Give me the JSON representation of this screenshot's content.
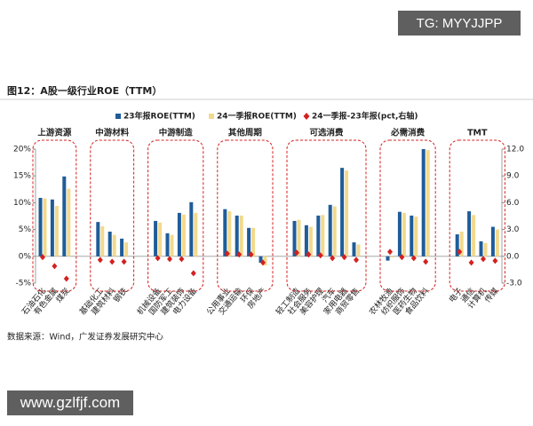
{
  "watermark_top": "TG: MYYJJPP",
  "watermark_bottom": "www.gzlfjf.com",
  "chart_data": {
    "type": "bar",
    "title": "图12：A股一级行业ROE（TTM）",
    "source": "数据来源：Wind，广发证券发展研究中心",
    "legend": "top",
    "groups": [
      {
        "name": "上游资源",
        "categories": [
          "石油石化",
          "有色金属",
          "煤炭"
        ]
      },
      {
        "name": "中游材料",
        "categories": [
          "基础化工",
          "建筑材料",
          "钢铁"
        ]
      },
      {
        "name": "中游制造",
        "categories": [
          "机械设备",
          "国防军工",
          "建筑装饰",
          "电力设备"
        ]
      },
      {
        "name": "其他周期",
        "categories": [
          "公用事业",
          "交通运输",
          "环保",
          "房地产"
        ]
      },
      {
        "name": "可选消费",
        "categories": [
          "轻工制造",
          "社会服务",
          "美容护理",
          "汽车",
          "家用电器",
          "商贸零售"
        ]
      },
      {
        "name": "必需消费",
        "categories": [
          "农林牧渔",
          "纺织服饰",
          "医药生物",
          "食品饮料"
        ]
      },
      {
        "name": "TMT",
        "categories": [
          "电子",
          "通信",
          "计算机",
          "传媒"
        ]
      }
    ],
    "series": [
      {
        "name": "23年报ROE(TTM)",
        "color": "#1f5c99",
        "type": "bar",
        "values": [
          10.9,
          10.6,
          14.9,
          6.4,
          4.6,
          3.3,
          6.6,
          4.3,
          8.1,
          10.1,
          8.8,
          7.6,
          5.3,
          -1.2,
          6.6,
          5.8,
          7.6,
          9.6,
          16.5,
          2.6,
          -0.8,
          8.3,
          7.6,
          20.0,
          4.1,
          8.4,
          2.8,
          5.5
        ]
      },
      {
        "name": "24一季报ROE(TTM)",
        "color": "#f2d98c",
        "type": "bar",
        "values": [
          10.8,
          9.4,
          12.6,
          5.6,
          4.0,
          2.6,
          6.3,
          4.0,
          7.8,
          8.1,
          8.4,
          7.6,
          5.3,
          -1.7,
          6.8,
          5.5,
          7.7,
          9.3,
          16.0,
          2.2,
          -0.2,
          8.1,
          7.4,
          19.8,
          4.6,
          7.7,
          2.5,
          5.0
        ]
      },
      {
        "name": "24一季报-23年报(pct,右轴)",
        "color": "#d42020",
        "type": "scatter",
        "axis": "y2",
        "values": [
          -0.1,
          -1.1,
          -2.5,
          -0.4,
          -0.6,
          -0.6,
          -0.2,
          -0.3,
          -0.3,
          -1.9,
          0.3,
          0.2,
          0.2,
          -0.7,
          0.4,
          0.2,
          0.1,
          -0.2,
          -0.1,
          -0.4,
          0.5,
          -0.1,
          -0.2,
          -0.6,
          0.5,
          -0.7,
          -0.3,
          -0.5
        ]
      }
    ],
    "ylim": [
      -5,
      20
    ],
    "yticks": [
      {
        "value": -5,
        "label": "-5%"
      },
      {
        "value": 0,
        "label": "0%"
      },
      {
        "value": 5,
        "label": "5%"
      },
      {
        "value": 10,
        "label": "10%"
      },
      {
        "value": 15,
        "label": "15%"
      },
      {
        "value": 20,
        "label": "20%"
      }
    ],
    "y2lim": [
      -3,
      12
    ],
    "y2ticks": [
      {
        "value": -3,
        "label": "-3.0"
      },
      {
        "value": 0,
        "label": "0.0"
      },
      {
        "value": 3,
        "label": "3.0"
      },
      {
        "value": 6,
        "label": "6.0"
      },
      {
        "value": 9,
        "label": "9.0"
      },
      {
        "value": 12,
        "label": "12.0"
      }
    ]
  }
}
